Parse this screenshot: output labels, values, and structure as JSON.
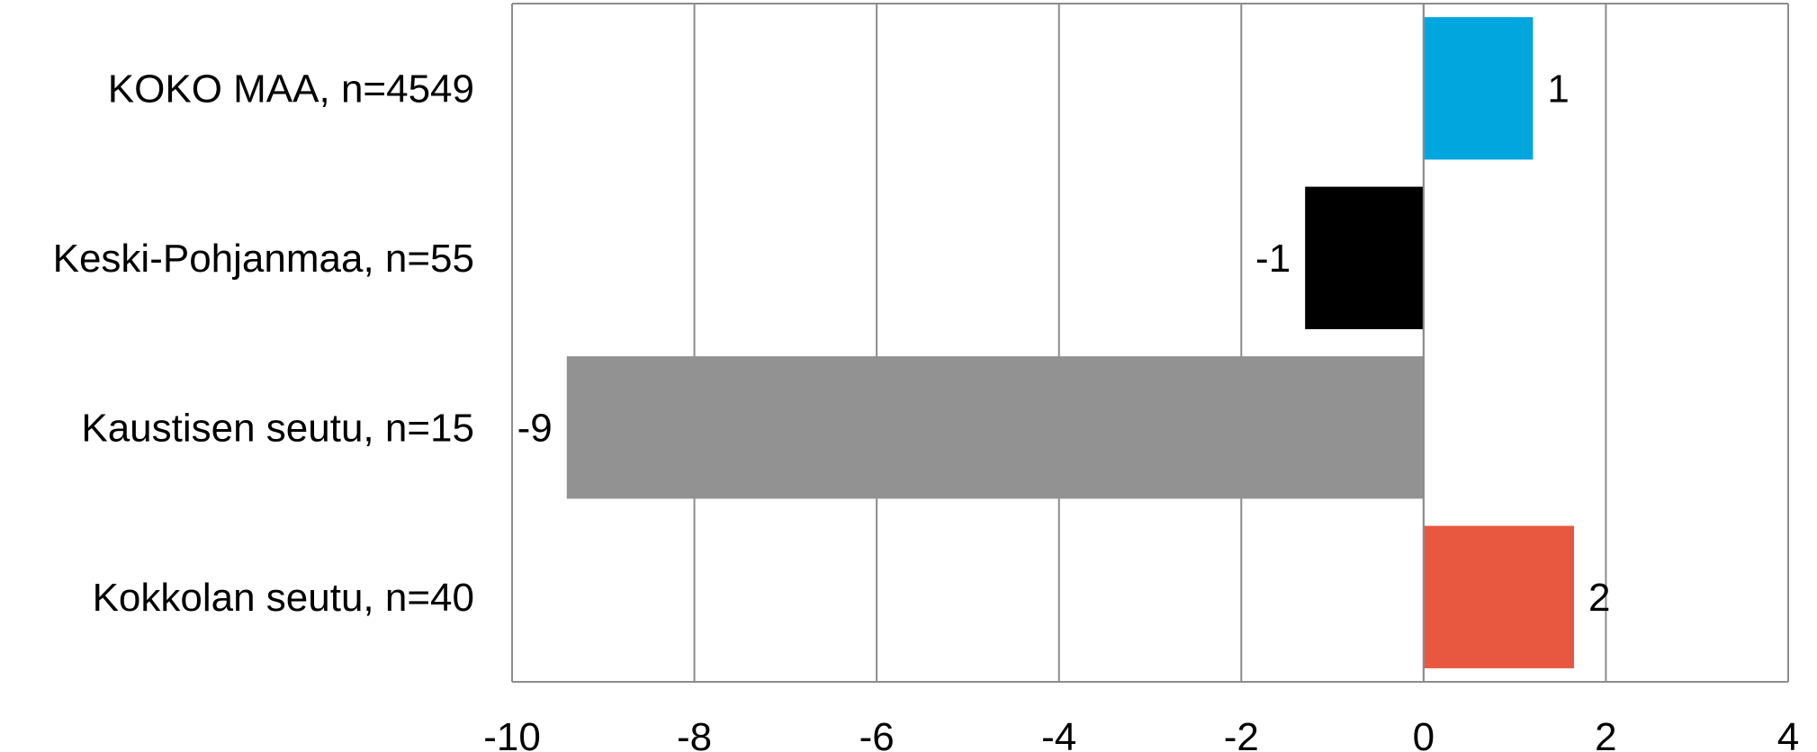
{
  "chart_data": {
    "type": "bar",
    "orientation": "horizontal",
    "title": "",
    "xlabel": "",
    "ylabel": "",
    "categories": [
      "KOKO MAA, n=4549",
      "Keski-Pohjanmaa, n=55",
      "Kaustisen seutu, n=15",
      "Kokkolan seutu, n=40"
    ],
    "values": [
      1.2,
      -1.3,
      -9.4,
      1.65
    ],
    "data_labels": [
      "1",
      "-1",
      "-9",
      "2"
    ],
    "colors": [
      "#00a6dd",
      "#000000",
      "#929292",
      "#e85840"
    ],
    "xlim": [
      -10,
      4
    ],
    "x_ticks": [
      -10,
      -8,
      -6,
      -4,
      -2,
      0,
      2,
      4
    ],
    "x_tick_labels": [
      "-10",
      "-8",
      "-6",
      "-4",
      "-2",
      "0",
      "2",
      "4"
    ],
    "grid": true,
    "legend": "none"
  }
}
